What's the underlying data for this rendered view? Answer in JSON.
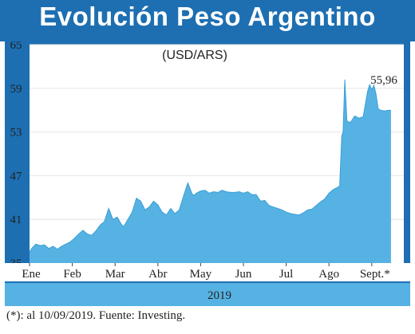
{
  "header": {
    "title": "Evolución Peso Argentino"
  },
  "chart_data": {
    "type": "area",
    "subtitle": "(USD/ARS)",
    "year_label": "2019",
    "x_tick_labels": [
      "Ene",
      "Feb",
      "Mar",
      "Abr",
      "May",
      "Jun",
      "Jul",
      "Ago",
      "Sept.*"
    ],
    "y_ticks": [
      35,
      41,
      47,
      53,
      59,
      65
    ],
    "ylim": [
      35,
      65
    ],
    "xlim": [
      0,
      8.75
    ],
    "x_tick_positions": [
      0,
      1,
      2,
      3,
      4,
      5,
      6,
      7,
      8
    ],
    "last_value_label": "55,96",
    "fill_color": "#56b2e2",
    "grid": true,
    "series": [
      {
        "x": [
          0,
          0.05,
          0.15,
          0.25,
          0.35,
          0.45,
          0.55,
          0.65,
          0.75,
          0.85,
          0.95,
          1.05,
          1.15,
          1.25,
          1.35,
          1.45,
          1.55,
          1.65,
          1.75,
          1.85,
          1.95,
          2.05,
          2.15,
          2.2,
          2.3,
          2.4,
          2.5,
          2.6,
          2.7,
          2.8,
          2.9,
          3.0,
          3.1,
          3.2,
          3.3,
          3.4,
          3.5,
          3.6,
          3.7,
          3.8,
          3.85,
          3.9,
          4.0,
          4.1,
          4.2,
          4.3,
          4.4,
          4.5,
          4.6,
          4.7,
          4.8,
          4.9,
          5.0,
          5.1,
          5.2,
          5.3,
          5.4,
          5.5,
          5.6,
          5.7,
          5.8,
          5.9,
          6.0,
          6.1,
          6.2,
          6.3,
          6.4,
          6.5,
          6.6,
          6.7,
          6.8,
          6.9,
          7.0,
          7.1,
          7.2,
          7.25,
          7.3,
          7.33,
          7.37,
          7.42,
          7.5,
          7.6,
          7.7,
          7.8,
          7.9,
          7.95,
          8.0,
          8.05,
          8.1,
          8.15,
          8.2,
          8.3,
          8.4,
          8.45
        ],
        "values": [
          36.5,
          37.0,
          37.6,
          37.4,
          37.5,
          37.0,
          37.3,
          36.9,
          37.3,
          37.6,
          37.9,
          38.4,
          39.0,
          39.5,
          39.0,
          38.8,
          39.4,
          40.2,
          40.7,
          42.5,
          41.0,
          41.3,
          40.3,
          40.0,
          41.0,
          42.0,
          43.9,
          43.5,
          42.3,
          42.7,
          43.5,
          43.0,
          42.0,
          41.6,
          42.5,
          41.8,
          42.3,
          44.2,
          46.0,
          44.5,
          44.3,
          44.6,
          44.9,
          45.0,
          44.6,
          44.8,
          44.7,
          45.0,
          44.8,
          44.7,
          44.7,
          44.8,
          44.6,
          44.8,
          44.4,
          44.4,
          43.5,
          43.6,
          42.9,
          42.7,
          42.5,
          42.3,
          42.0,
          41.8,
          41.7,
          41.6,
          41.9,
          42.3,
          42.4,
          42.9,
          43.4,
          43.8,
          44.6,
          45.1,
          45.4,
          45.6,
          52.5,
          53.0,
          60.2,
          54.5,
          54.3,
          55.2,
          54.9,
          55.1,
          58.5,
          59.5,
          58.8,
          59.4,
          58.2,
          56.2,
          56.0,
          55.9,
          56.0,
          55.96
        ]
      }
    ]
  },
  "footnote": "(*): al 10/09/2019. Fuente: Investing."
}
